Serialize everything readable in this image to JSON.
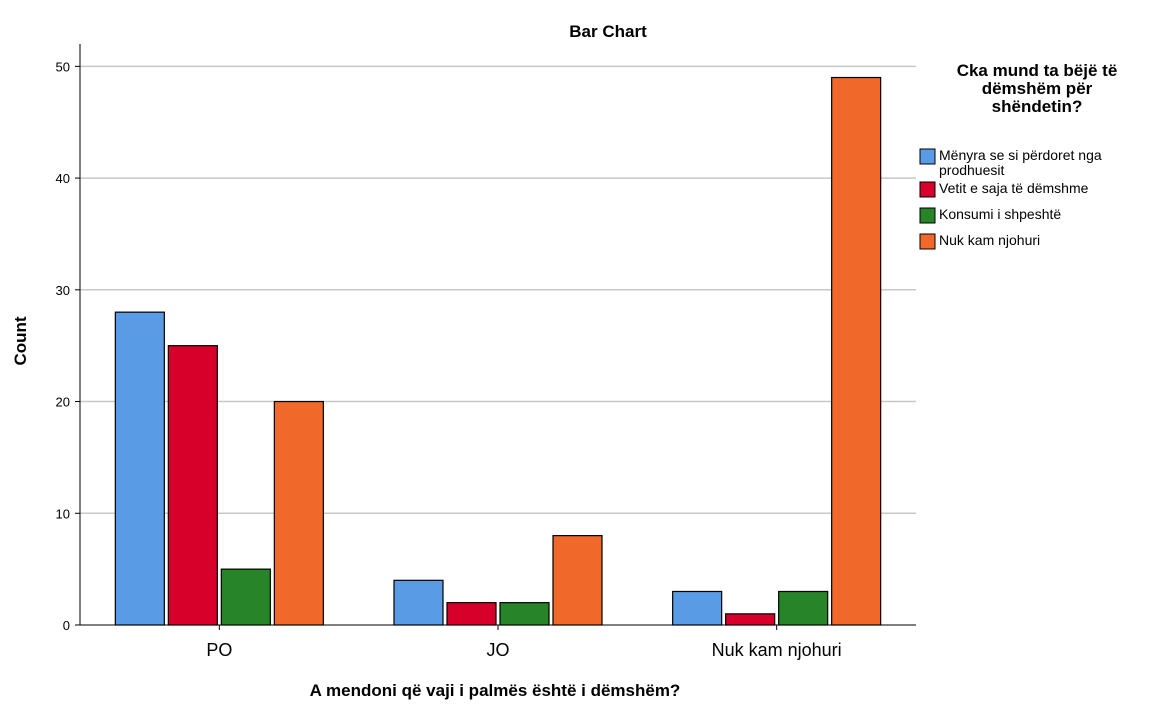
{
  "chart_data": {
    "type": "bar",
    "title": "Bar Chart",
    "xlabel": "A mendoni që vaji i palmës është i dëmshëm?",
    "ylabel": "Count",
    "categories": [
      "PO",
      "JO",
      "Nuk kam njohuri"
    ],
    "ylim": [
      0,
      52
    ],
    "yticks": [
      0,
      10,
      20,
      30,
      40,
      50
    ],
    "grid": true,
    "legend": {
      "title": [
        "Cka mund ta bëjë të",
        "dëmshëm për",
        "shëndetin?"
      ],
      "placement": "right"
    },
    "series": [
      {
        "name": "Mënyra se si përdoret nga prodhuesit",
        "label_lines": [
          "Mënyra se si përdoret nga",
          "prodhuesit"
        ],
        "color": "#5a9be5",
        "values": [
          28,
          4,
          3
        ]
      },
      {
        "name": "Vetit e saja të dëmshme",
        "label_lines": [
          "Vetit e saja të dëmshme"
        ],
        "color": "#d6002a",
        "values": [
          25,
          2,
          1
        ]
      },
      {
        "name": "Konsumi i shpeshtë",
        "label_lines": [
          "Konsumi i shpeshtë"
        ],
        "color": "#288428",
        "values": [
          5,
          2,
          3
        ]
      },
      {
        "name": "Nuk kam njohuri",
        "label_lines": [
          "Nuk kam njohuri"
        ],
        "color": "#f0682a",
        "values": [
          20,
          8,
          49
        ]
      }
    ]
  }
}
